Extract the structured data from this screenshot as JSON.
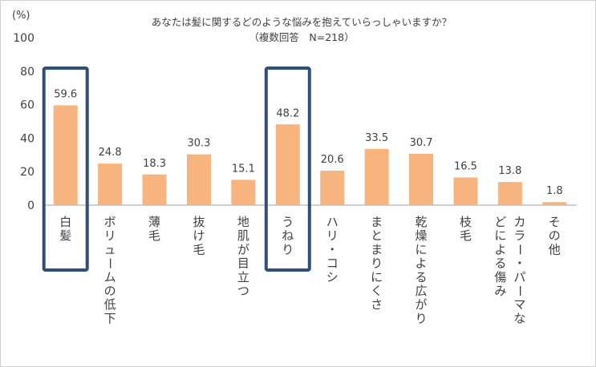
{
  "chart_data": {
    "type": "bar",
    "title": "あなたは髪に関するどのような悩みを抱えていらっしゃいますか？",
    "subtitle": "（複数回答　N=218）",
    "yunit": "(%)",
    "ylim": [
      0,
      100
    ],
    "yticks": [
      0,
      20,
      40,
      60,
      80,
      100
    ],
    "grid": false,
    "legend": "none",
    "categories": [
      "白髪",
      "ボリュームの低下",
      "薄毛",
      "抜け毛",
      "地肌が目立つ",
      "うねり",
      "ハリ・コシ",
      "まとまりにくさ",
      "乾燥による広がり",
      "枝毛",
      "カラー・パーマなどによる傷み",
      "その他"
    ],
    "values": [
      59.6,
      24.8,
      18.3,
      30.3,
      15.1,
      48.2,
      20.6,
      33.5,
      30.7,
      16.5,
      13.8,
      1.8
    ],
    "highlighted": [
      "白髪",
      "うねり"
    ],
    "bar_color": "#f8b47e",
    "highlight_color": "#2f4f78",
    "axis_color": "#bfbfbf"
  }
}
